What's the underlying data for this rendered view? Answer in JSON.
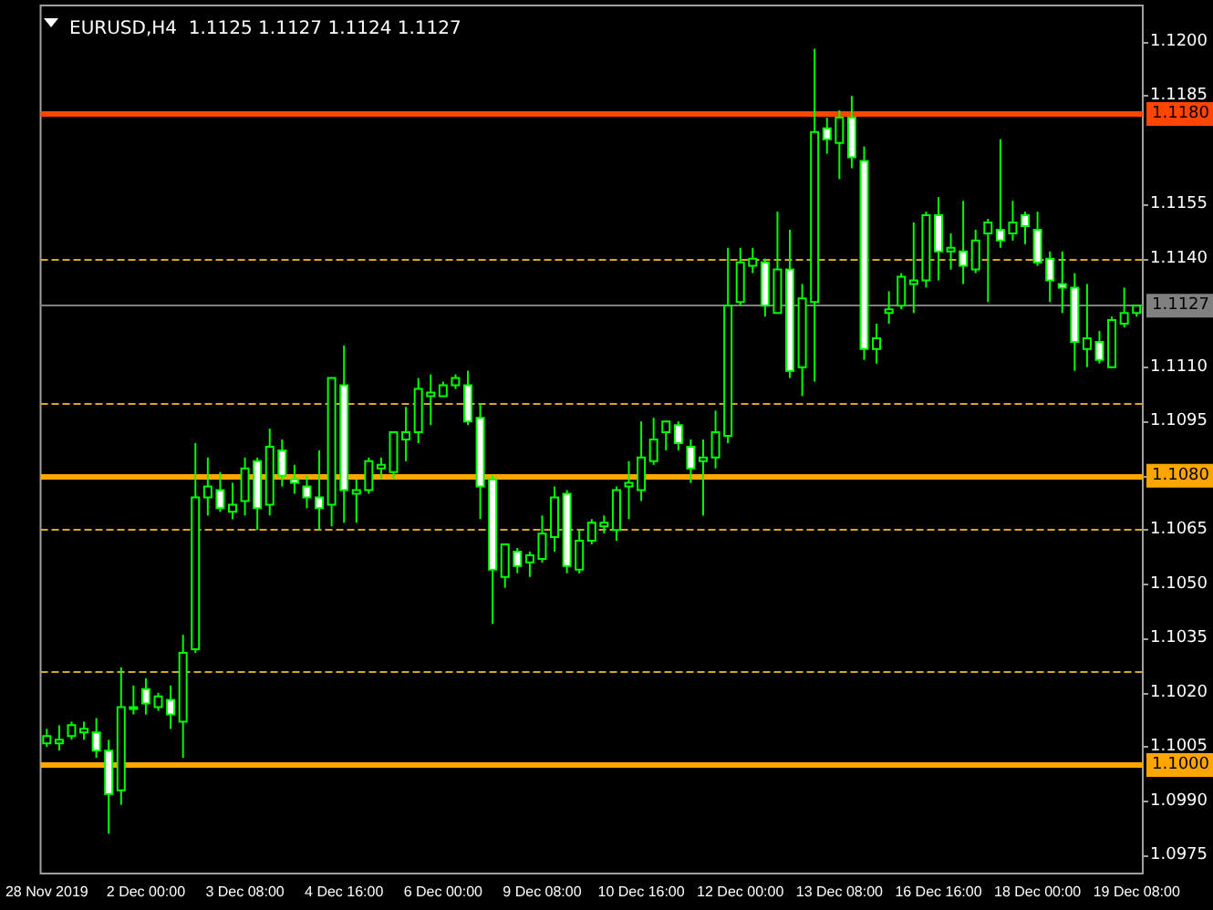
{
  "chart_data": {
    "type": "candlestick",
    "title": "EURUSD,H4  1.1125 1.1127 1.1124 1.1127",
    "categories": [
      "28 Nov 2019",
      null,
      null,
      null,
      null,
      null,
      null,
      null,
      "2 Dec 00:00",
      null,
      null,
      null,
      null,
      null,
      null,
      null,
      "3 Dec 08:00",
      null,
      null,
      null,
      null,
      null,
      null,
      null,
      "4 Dec 16:00",
      null,
      null,
      null,
      null,
      null,
      null,
      null,
      "6 Dec 00:00",
      null,
      null,
      null,
      null,
      null,
      null,
      null,
      "9 Dec 08:00",
      null,
      null,
      null,
      null,
      null,
      null,
      null,
      "10 Dec 16:00",
      null,
      null,
      null,
      null,
      null,
      null,
      null,
      "12 Dec 00:00",
      null,
      null,
      null,
      null,
      null,
      null,
      null,
      "13 Dec 08:00",
      null,
      null,
      null,
      null,
      null,
      null,
      null,
      "16 Dec 16:00",
      null,
      null,
      null,
      null,
      null,
      null,
      null,
      "18 Dec 00:00",
      null,
      null,
      null,
      null,
      null,
      null,
      null,
      "19 Dec 08:00"
    ],
    "ohlc": [
      [
        1.1006,
        1.101,
        1.1005,
        1.1008
      ],
      [
        1.1006,
        1.1011,
        1.1004,
        1.1007
      ],
      [
        1.1008,
        1.1012,
        1.1007,
        1.1011
      ],
      [
        1.1009,
        1.1012,
        1.1007,
        1.101
      ],
      [
        1.1009,
        1.1013,
        1.1002,
        1.1004
      ],
      [
        1.1004,
        1.1007,
        1.0981,
        1.0992
      ],
      [
        1.0993,
        1.1027,
        1.0989,
        1.1016
      ],
      [
        1.1016,
        1.1022,
        1.1014,
        1.1016
      ],
      [
        1.1021,
        1.1024,
        1.1014,
        1.1017
      ],
      [
        1.1016,
        1.102,
        1.1015,
        1.1019
      ],
      [
        1.1018,
        1.1022,
        1.101,
        1.1014
      ],
      [
        1.1012,
        1.1036,
        1.1002,
        1.1031
      ],
      [
        1.1032,
        1.1089,
        1.1031,
        1.1074
      ],
      [
        1.1074,
        1.1085,
        1.1069,
        1.1077
      ],
      [
        1.1076,
        1.1081,
        1.107,
        1.1071
      ],
      [
        1.107,
        1.1078,
        1.1068,
        1.1072
      ],
      [
        1.1073,
        1.1085,
        1.1069,
        1.1082
      ],
      [
        1.1084,
        1.1085,
        1.1065,
        1.1071
      ],
      [
        1.1072,
        1.1093,
        1.1069,
        1.1088
      ],
      [
        1.1087,
        1.109,
        1.1077,
        1.108
      ],
      [
        1.1079,
        1.1083,
        1.1075,
        1.1078
      ],
      [
        1.1077,
        1.108,
        1.1071,
        1.1074
      ],
      [
        1.1074,
        1.1087,
        1.1065,
        1.1071
      ],
      [
        1.1072,
        1.1107,
        1.1066,
        1.1107
      ],
      [
        1.1105,
        1.1116,
        1.1067,
        1.1076
      ],
      [
        1.1075,
        1.1079,
        1.1067,
        1.1076
      ],
      [
        1.1076,
        1.1085,
        1.1075,
        1.1084
      ],
      [
        1.1082,
        1.1085,
        1.1079,
        1.1083
      ],
      [
        1.1081,
        1.1092,
        1.1079,
        1.1092
      ],
      [
        1.109,
        1.1099,
        1.1084,
        1.1092
      ],
      [
        1.1092,
        1.1107,
        1.1089,
        1.1104
      ],
      [
        1.1102,
        1.1108,
        1.1094,
        1.1103
      ],
      [
        1.1102,
        1.1106,
        1.1102,
        1.1105
      ],
      [
        1.1105,
        1.1108,
        1.1104,
        1.1107
      ],
      [
        1.1105,
        1.1109,
        1.1094,
        1.1095
      ],
      [
        1.1096,
        1.11,
        1.1068,
        1.1077
      ],
      [
        1.1079,
        1.108,
        1.1039,
        1.1054
      ],
      [
        1.1052,
        1.1061,
        1.1049,
        1.1061
      ],
      [
        1.1059,
        1.106,
        1.1053,
        1.1055
      ],
      [
        1.1056,
        1.1059,
        1.1052,
        1.1058
      ],
      [
        1.1057,
        1.1069,
        1.1056,
        1.1064
      ],
      [
        1.1063,
        1.1077,
        1.1059,
        1.1074
      ],
      [
        1.1075,
        1.1076,
        1.1053,
        1.1055
      ],
      [
        1.1054,
        1.1065,
        1.1053,
        1.1062
      ],
      [
        1.1062,
        1.1068,
        1.1061,
        1.1067
      ],
      [
        1.1066,
        1.1069,
        1.1064,
        1.1067
      ],
      [
        1.1065,
        1.1077,
        1.1062,
        1.1076
      ],
      [
        1.1077,
        1.1084,
        1.1068,
        1.1078
      ],
      [
        1.1076,
        1.1095,
        1.1073,
        1.1085
      ],
      [
        1.1084,
        1.1096,
        1.1083,
        1.109
      ],
      [
        1.1092,
        1.1095,
        1.1087,
        1.1095
      ],
      [
        1.1094,
        1.1095,
        1.1087,
        1.1089
      ],
      [
        1.1088,
        1.109,
        1.1078,
        1.1082
      ],
      [
        1.1084,
        1.109,
        1.1069,
        1.1085
      ],
      [
        1.1085,
        1.1098,
        1.1082,
        1.1092
      ],
      [
        1.1091,
        1.1143,
        1.1089,
        1.1127
      ],
      [
        1.1128,
        1.1143,
        1.1127,
        1.1139
      ],
      [
        1.1138,
        1.1143,
        1.1136,
        1.114
      ],
      [
        1.1139,
        1.114,
        1.1124,
        1.1127
      ],
      [
        1.1125,
        1.1153,
        1.1125,
        1.1137
      ],
      [
        1.1137,
        1.1148,
        1.1107,
        1.1109
      ],
      [
        1.111,
        1.1133,
        1.1102,
        1.1129
      ],
      [
        1.1128,
        1.1198,
        1.1106,
        1.1175
      ],
      [
        1.1176,
        1.1179,
        1.1169,
        1.1173
      ],
      [
        1.1172,
        1.1181,
        1.1162,
        1.1179
      ],
      [
        1.1179,
        1.1185,
        1.1165,
        1.1168
      ],
      [
        1.1167,
        1.1171,
        1.1112,
        1.1115
      ],
      [
        1.1115,
        1.1122,
        1.1111,
        1.1118
      ],
      [
        1.1125,
        1.1131,
        1.1122,
        1.1126
      ],
      [
        1.1127,
        1.1136,
        1.1126,
        1.1135
      ],
      [
        1.1133,
        1.115,
        1.1125,
        1.1134
      ],
      [
        1.1134,
        1.1153,
        1.1132,
        1.1152
      ],
      [
        1.1152,
        1.1157,
        1.1134,
        1.1142
      ],
      [
        1.1142,
        1.1147,
        1.1137,
        1.1143
      ],
      [
        1.1142,
        1.1156,
        1.1133,
        1.1138
      ],
      [
        1.1137,
        1.1148,
        1.1136,
        1.1145
      ],
      [
        1.1147,
        1.1151,
        1.1128,
        1.115
      ],
      [
        1.1148,
        1.1173,
        1.1143,
        1.1145
      ],
      [
        1.1147,
        1.1156,
        1.1145,
        1.115
      ],
      [
        1.1152,
        1.1153,
        1.1144,
        1.1149
      ],
      [
        1.1148,
        1.1153,
        1.1138,
        1.1139
      ],
      [
        1.114,
        1.1142,
        1.1128,
        1.1134
      ],
      [
        1.1133,
        1.1142,
        1.1125,
        1.1132
      ],
      [
        1.1132,
        1.1136,
        1.1109,
        1.1117
      ],
      [
        1.1115,
        1.1133,
        1.111,
        1.1118
      ],
      [
        1.1117,
        1.112,
        1.1111,
        1.1112
      ],
      [
        1.111,
        1.1124,
        1.111,
        1.1123
      ],
      [
        1.1122,
        1.1132,
        1.1121,
        1.1125
      ],
      [
        1.1125,
        1.1127,
        1.1124,
        1.1127
      ]
    ],
    "ylim": [
      1.097,
      1.121
    ],
    "yticks": [
      {
        "value": 1.0975,
        "label": "1.0975"
      },
      {
        "value": 1.099,
        "label": "1.0990"
      },
      {
        "value": 1.1005,
        "label": "1.1005"
      },
      {
        "value": 1.102,
        "label": "1.1020"
      },
      {
        "value": 1.1035,
        "label": "1.1035"
      },
      {
        "value": 1.105,
        "label": "1.1050"
      },
      {
        "value": 1.1065,
        "label": "1.1065"
      },
      {
        "value": 1.108,
        "label": "1.1080"
      },
      {
        "value": 1.1095,
        "label": "1.1095"
      },
      {
        "value": 1.111,
        "label": "1.1110"
      },
      {
        "value": 1.114,
        "label": "1.1140"
      },
      {
        "value": 1.1155,
        "label": "1.1155"
      },
      {
        "value": 1.1185,
        "label": "1.1185"
      },
      {
        "value": 1.12,
        "label": "1.1200"
      }
    ],
    "ref_lines": [
      {
        "axis": "y",
        "value": 1.118,
        "label": "1.1180",
        "color": "#ff4500",
        "line_style": "solid"
      },
      {
        "axis": "y",
        "value": 1.108,
        "label": "1.1080",
        "color": "#ffa500",
        "line_style": "solid"
      },
      {
        "axis": "y",
        "value": 1.1,
        "label": "1.1000",
        "color": "#ffa500",
        "line_style": "solid"
      },
      {
        "axis": "y",
        "value": 1.1127,
        "label": "1.1127",
        "color": "#808080",
        "line_style": "solid"
      },
      {
        "axis": "y",
        "value": 1.114,
        "color": "#daa520",
        "line_style": "dashed"
      },
      {
        "axis": "y",
        "value": 1.11,
        "color": "#daa520",
        "line_style": "dashed"
      },
      {
        "axis": "y",
        "value": 1.1065,
        "color": "#daa520",
        "line_style": "dashed"
      },
      {
        "axis": "y",
        "value": 1.1026,
        "color": "#daa520",
        "line_style": "dashed"
      }
    ]
  }
}
